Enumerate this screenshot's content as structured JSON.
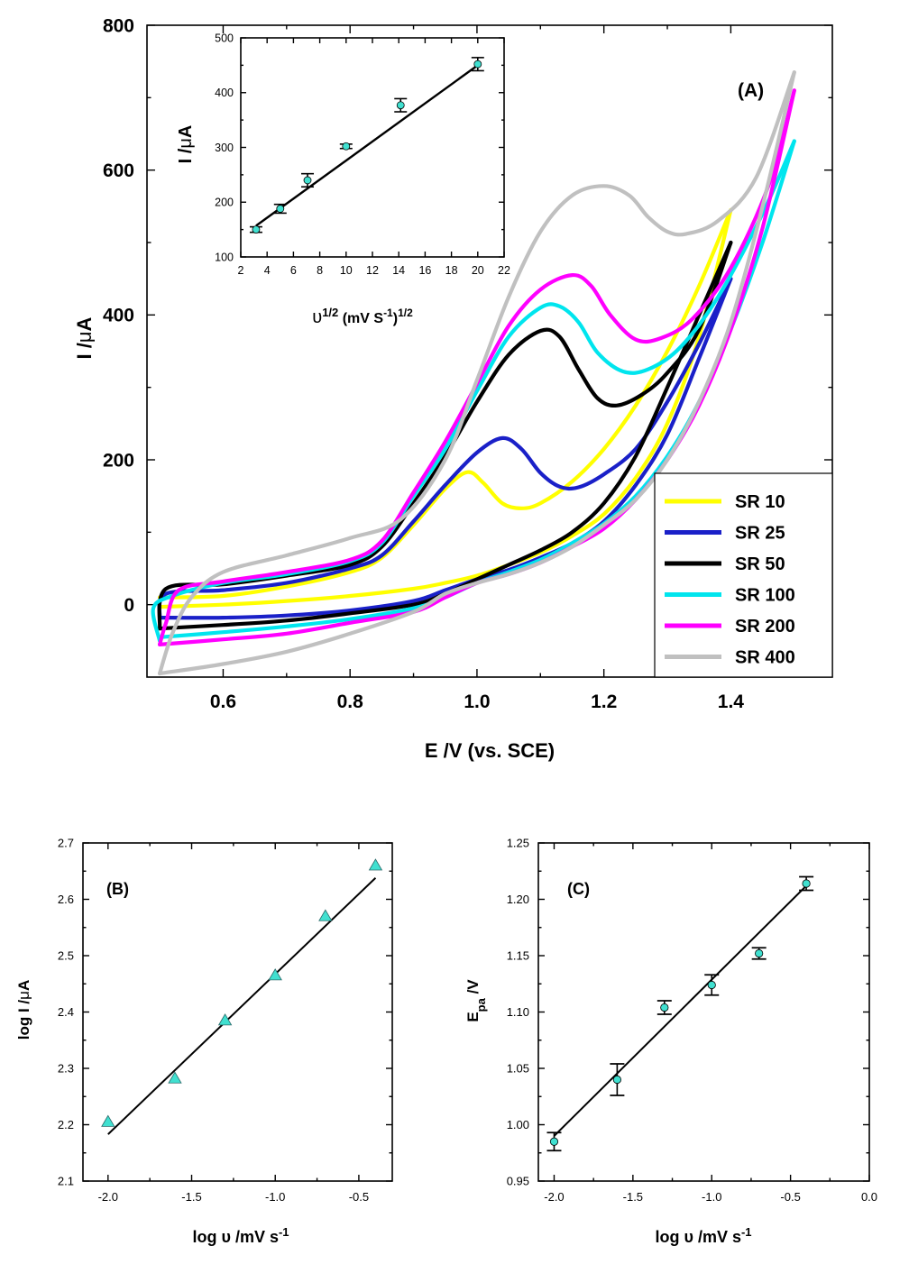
{
  "chart_data": [
    {
      "id": "A",
      "type": "line",
      "panel_label": "(A)",
      "title": "",
      "xlabel": "E /V (vs. SCE)",
      "ylabel_main": "I /",
      "ylabel_mu": "μ",
      "ylabel_unit": "A",
      "xlim": [
        0.48,
        1.56
      ],
      "ylim": [
        -100,
        800
      ],
      "xticks": [
        0.6,
        0.8,
        1.0,
        1.2,
        1.4
      ],
      "xtick_labels": [
        "0.6",
        "0.8",
        "1.0",
        "1.2",
        "1.4"
      ],
      "yticks": [
        0,
        200,
        400,
        600,
        800
      ],
      "ytick_labels": [
        "0",
        "200",
        "400",
        "600",
        "800"
      ],
      "legend_position": "bottom-right",
      "series": [
        {
          "name": "SR 10",
          "color": "#ffff00",
          "forward": [
            [
              0.5,
              10
            ],
            [
              0.6,
              12
            ],
            [
              0.7,
              25
            ],
            [
              0.8,
              45
            ],
            [
              0.85,
              65
            ],
            [
              0.9,
              110
            ],
            [
              0.95,
              160
            ],
            [
              0.985,
              183
            ],
            [
              1.01,
              168
            ],
            [
              1.04,
              140
            ],
            [
              1.07,
              133
            ],
            [
              1.1,
              140
            ],
            [
              1.15,
              170
            ],
            [
              1.2,
              215
            ],
            [
              1.25,
              275
            ],
            [
              1.3,
              350
            ],
            [
              1.35,
              440
            ],
            [
              1.4,
              545
            ]
          ],
          "reverse": [
            [
              1.4,
              545
            ],
            [
              1.35,
              370
            ],
            [
              1.3,
              250
            ],
            [
              1.25,
              175
            ],
            [
              1.2,
              125
            ],
            [
              1.15,
              95
            ],
            [
              1.1,
              72
            ],
            [
              1.05,
              55
            ],
            [
              1.0,
              40
            ],
            [
              0.95,
              30
            ],
            [
              0.9,
              22
            ],
            [
              0.8,
              12
            ],
            [
              0.7,
              5
            ],
            [
              0.6,
              0
            ],
            [
              0.5,
              -3
            ]
          ]
        },
        {
          "name": "SR 25",
          "color": "#1a20c8",
          "forward": [
            [
              0.5,
              -18
            ],
            [
              0.51,
              15
            ],
            [
              0.6,
              20
            ],
            [
              0.7,
              30
            ],
            [
              0.8,
              50
            ],
            [
              0.85,
              68
            ],
            [
              0.9,
              115
            ],
            [
              0.95,
              165
            ],
            [
              1.0,
              210
            ],
            [
              1.04,
              230
            ],
            [
              1.07,
              215
            ],
            [
              1.1,
              182
            ],
            [
              1.13,
              163
            ],
            [
              1.16,
              162
            ],
            [
              1.2,
              180
            ],
            [
              1.25,
              215
            ],
            [
              1.3,
              280
            ],
            [
              1.35,
              360
            ],
            [
              1.4,
              450
            ]
          ],
          "reverse": [
            [
              1.4,
              450
            ],
            [
              1.35,
              340
            ],
            [
              1.3,
              235
            ],
            [
              1.25,
              165
            ],
            [
              1.2,
              115
            ],
            [
              1.15,
              85
            ],
            [
              1.1,
              65
            ],
            [
              1.05,
              48
            ],
            [
              1.0,
              35
            ],
            [
              0.95,
              20
            ],
            [
              0.9,
              5
            ],
            [
              0.8,
              -8
            ],
            [
              0.7,
              -15
            ],
            [
              0.6,
              -18
            ],
            [
              0.5,
              -18
            ]
          ]
        },
        {
          "name": "SR 50",
          "color": "#000000",
          "forward": [
            [
              0.5,
              -33
            ],
            [
              0.51,
              22
            ],
            [
              0.6,
              28
            ],
            [
              0.7,
              40
            ],
            [
              0.8,
              55
            ],
            [
              0.85,
              80
            ],
            [
              0.9,
              140
            ],
            [
              0.95,
              205
            ],
            [
              1.0,
              280
            ],
            [
              1.05,
              345
            ],
            [
              1.1,
              378
            ],
            [
              1.13,
              370
            ],
            [
              1.16,
              325
            ],
            [
              1.19,
              285
            ],
            [
              1.22,
              275
            ],
            [
              1.26,
              290
            ],
            [
              1.3,
              320
            ],
            [
              1.35,
              380
            ],
            [
              1.4,
              500
            ]
          ],
          "reverse": [
            [
              1.4,
              500
            ],
            [
              1.35,
              400
            ],
            [
              1.3,
              300
            ],
            [
              1.25,
              205
            ],
            [
              1.2,
              140
            ],
            [
              1.15,
              100
            ],
            [
              1.1,
              75
            ],
            [
              1.05,
              55
            ],
            [
              1.0,
              35
            ],
            [
              0.95,
              15
            ],
            [
              0.9,
              0
            ],
            [
              0.8,
              -12
            ],
            [
              0.7,
              -22
            ],
            [
              0.6,
              -28
            ],
            [
              0.5,
              -33
            ]
          ]
        },
        {
          "name": "SR 100",
          "color": "#00e5ee",
          "forward": [
            [
              0.5,
              -50
            ],
            [
              0.49,
              -5
            ],
            [
              0.52,
              12
            ],
            [
              0.6,
              30
            ],
            [
              0.7,
              42
            ],
            [
              0.8,
              60
            ],
            [
              0.85,
              85
            ],
            [
              0.9,
              150
            ],
            [
              0.95,
              215
            ],
            [
              1.0,
              295
            ],
            [
              1.05,
              370
            ],
            [
              1.1,
              410
            ],
            [
              1.13,
              412
            ],
            [
              1.16,
              390
            ],
            [
              1.19,
              348
            ],
            [
              1.23,
              322
            ],
            [
              1.27,
              325
            ],
            [
              1.32,
              355
            ],
            [
              1.38,
              425
            ],
            [
              1.45,
              540
            ],
            [
              1.5,
              640
            ]
          ],
          "reverse": [
            [
              1.5,
              640
            ],
            [
              1.45,
              500
            ],
            [
              1.4,
              380
            ],
            [
              1.35,
              280
            ],
            [
              1.3,
              205
            ],
            [
              1.25,
              150
            ],
            [
              1.2,
              112
            ],
            [
              1.15,
              85
            ],
            [
              1.1,
              62
            ],
            [
              1.05,
              45
            ],
            [
              1.0,
              30
            ],
            [
              0.95,
              10
            ],
            [
              0.9,
              -5
            ],
            [
              0.8,
              -20
            ],
            [
              0.7,
              -30
            ],
            [
              0.6,
              -38
            ],
            [
              0.5,
              -45
            ]
          ]
        },
        {
          "name": "SR 200",
          "color": "#ff00ff",
          "forward": [
            [
              0.5,
              -55
            ],
            [
              0.51,
              -25
            ],
            [
              0.53,
              20
            ],
            [
              0.6,
              32
            ],
            [
              0.7,
              45
            ],
            [
              0.8,
              62
            ],
            [
              0.85,
              88
            ],
            [
              0.9,
              155
            ],
            [
              0.95,
              225
            ],
            [
              1.0,
              305
            ],
            [
              1.05,
              385
            ],
            [
              1.1,
              435
            ],
            [
              1.15,
              455
            ],
            [
              1.18,
              440
            ],
            [
              1.21,
              400
            ],
            [
              1.25,
              366
            ],
            [
              1.29,
              368
            ],
            [
              1.34,
              395
            ],
            [
              1.4,
              465
            ],
            [
              1.46,
              580
            ],
            [
              1.5,
              710
            ]
          ],
          "reverse": [
            [
              1.5,
              710
            ],
            [
              1.45,
              520
            ],
            [
              1.4,
              380
            ],
            [
              1.35,
              275
            ],
            [
              1.3,
              200
            ],
            [
              1.25,
              145
            ],
            [
              1.2,
              105
            ],
            [
              1.15,
              80
            ],
            [
              1.1,
              58
            ],
            [
              1.05,
              42
            ],
            [
              1.0,
              30
            ],
            [
              0.95,
              10
            ],
            [
              0.9,
              -10
            ],
            [
              0.8,
              -25
            ],
            [
              0.7,
              -40
            ],
            [
              0.6,
              -48
            ],
            [
              0.5,
              -55
            ]
          ]
        },
        {
          "name": "SR 400",
          "color": "#c0c0c0",
          "forward": [
            [
              0.5,
              -95
            ],
            [
              0.52,
              -40
            ],
            [
              0.55,
              10
            ],
            [
              0.6,
              45
            ],
            [
              0.7,
              68
            ],
            [
              0.8,
              92
            ],
            [
              0.88,
              118
            ],
            [
              0.95,
              200
            ],
            [
              1.0,
              310
            ],
            [
              1.05,
              425
            ],
            [
              1.1,
              515
            ],
            [
              1.15,
              565
            ],
            [
              1.2,
              578
            ],
            [
              1.24,
              565
            ],
            [
              1.27,
              535
            ],
            [
              1.3,
              515
            ],
            [
              1.33,
              512
            ],
            [
              1.38,
              530
            ],
            [
              1.44,
              590
            ],
            [
              1.5,
              735
            ]
          ],
          "reverse": [
            [
              1.5,
              735
            ],
            [
              1.45,
              550
            ],
            [
              1.4,
              390
            ],
            [
              1.35,
              280
            ],
            [
              1.3,
              200
            ],
            [
              1.25,
              145
            ],
            [
              1.2,
              110
            ],
            [
              1.15,
              80
            ],
            [
              1.1,
              58
            ],
            [
              1.05,
              42
            ],
            [
              1.0,
              30
            ],
            [
              0.95,
              15
            ],
            [
              0.9,
              -10
            ],
            [
              0.8,
              -40
            ],
            [
              0.7,
              -65
            ],
            [
              0.6,
              -82
            ],
            [
              0.5,
              -95
            ]
          ]
        }
      ]
    },
    {
      "id": "A-inset",
      "type": "scatter",
      "panel_label": "",
      "title": "",
      "xlabel_base": "υ",
      "xlabel_sup1": "1/2",
      "xlabel_mid": " (mV S",
      "xlabel_sup2": "-1",
      "xlabel_end": ")",
      "xlabel_sup3": "1/2",
      "ylabel_main": "I /",
      "ylabel_mu": "μ",
      "ylabel_unit": "A",
      "xlim": [
        2,
        22
      ],
      "ylim": [
        100,
        500
      ],
      "xticks": [
        2,
        4,
        6,
        8,
        10,
        12,
        14,
        16,
        18,
        20,
        22
      ],
      "xtick_labels": [
        "2",
        "4",
        "6",
        "8",
        "10",
        "12",
        "14",
        "16",
        "18",
        "20",
        "22"
      ],
      "yticks": [
        100,
        200,
        300,
        400,
        500
      ],
      "ytick_labels": [
        "100",
        "200",
        "300",
        "400",
        "500"
      ],
      "x": [
        3.16,
        5.0,
        7.07,
        10.0,
        14.14,
        20.0
      ],
      "y": [
        150,
        188,
        240,
        302,
        377,
        452
      ],
      "err": [
        5,
        8,
        12,
        4,
        12,
        12
      ],
      "fit": {
        "x": [
          3.16,
          20.0
        ],
        "y": [
          157,
          450
        ]
      },
      "marker_color": "#40e0d0"
    },
    {
      "id": "B",
      "type": "scatter",
      "panel_label": "(B)",
      "title": "",
      "xlabel_main": "log υ /mV s",
      "xlabel_sup": "-1",
      "ylabel_main": "log I /",
      "ylabel_mu": "μ",
      "ylabel_unit": "A",
      "xlim": [
        -2.15,
        -0.3
      ],
      "ylim": [
        2.1,
        2.7
      ],
      "xticks": [
        -2.0,
        -1.5,
        -1.0,
        -0.5
      ],
      "xtick_labels": [
        "-2.0",
        "-1.5",
        "-1.0",
        "-0.5"
      ],
      "yticks": [
        2.1,
        2.2,
        2.3,
        2.4,
        2.5,
        2.6,
        2.7
      ],
      "ytick_labels": [
        "2.1",
        "2.2",
        "2.3",
        "2.4",
        "2.5",
        "2.6",
        "2.7"
      ],
      "x": [
        -2.0,
        -1.6,
        -1.3,
        -1.0,
        -0.7,
        -0.4
      ],
      "y": [
        2.205,
        2.282,
        2.385,
        2.465,
        2.57,
        2.66
      ],
      "fit": {
        "x": [
          -2.0,
          -0.4
        ],
        "y": [
          2.183,
          2.638
        ]
      },
      "marker_color": "#40e0d0"
    },
    {
      "id": "C",
      "type": "scatter",
      "panel_label": "(C)",
      "title": "",
      "xlabel_main": "log υ /mV s",
      "xlabel_sup": "-1",
      "ylabel_main": "E",
      "ylabel_sub": "pa",
      "ylabel_unit": " /V",
      "xlim": [
        -2.1,
        0.0
      ],
      "ylim": [
        0.95,
        1.25
      ],
      "xticks": [
        -2.0,
        -1.5,
        -1.0,
        -0.5,
        0.0
      ],
      "xtick_labels": [
        "-2.0",
        "-1.5",
        "-1.0",
        "-0.5",
        "0.0"
      ],
      "yticks": [
        0.95,
        1.0,
        1.05,
        1.1,
        1.15,
        1.2,
        1.25
      ],
      "ytick_labels": [
        "0.95",
        "1.00",
        "1.05",
        "1.10",
        "1.15",
        "1.20",
        "1.25"
      ],
      "x": [
        -2.0,
        -1.6,
        -1.3,
        -1.0,
        -0.7,
        -0.4
      ],
      "y": [
        0.985,
        1.04,
        1.104,
        1.124,
        1.152,
        1.214
      ],
      "err": [
        0.008,
        0.014,
        0.006,
        0.009,
        0.005,
        0.006
      ],
      "fit": {
        "x": [
          -2.0,
          -0.4
        ],
        "y": [
          0.99,
          1.212
        ]
      },
      "marker_color": "#40e0d0"
    }
  ]
}
